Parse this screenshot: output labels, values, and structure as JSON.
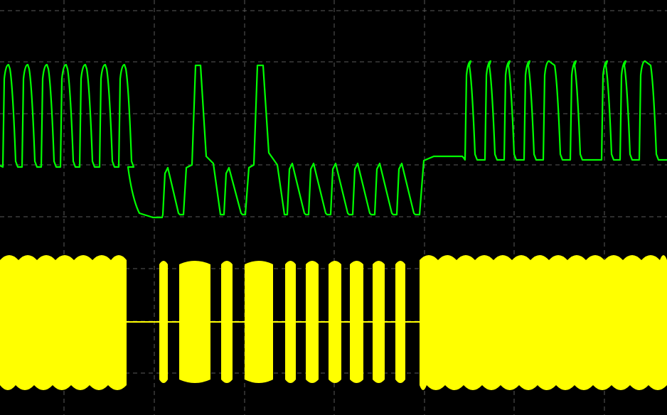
{
  "display": {
    "background": "#000000",
    "graticule_color": "#5a5a5a"
  },
  "channels": [
    {
      "name": "",
      "color": "#00ff00"
    },
    {
      "name": "",
      "color": "#ffff00"
    }
  ]
}
